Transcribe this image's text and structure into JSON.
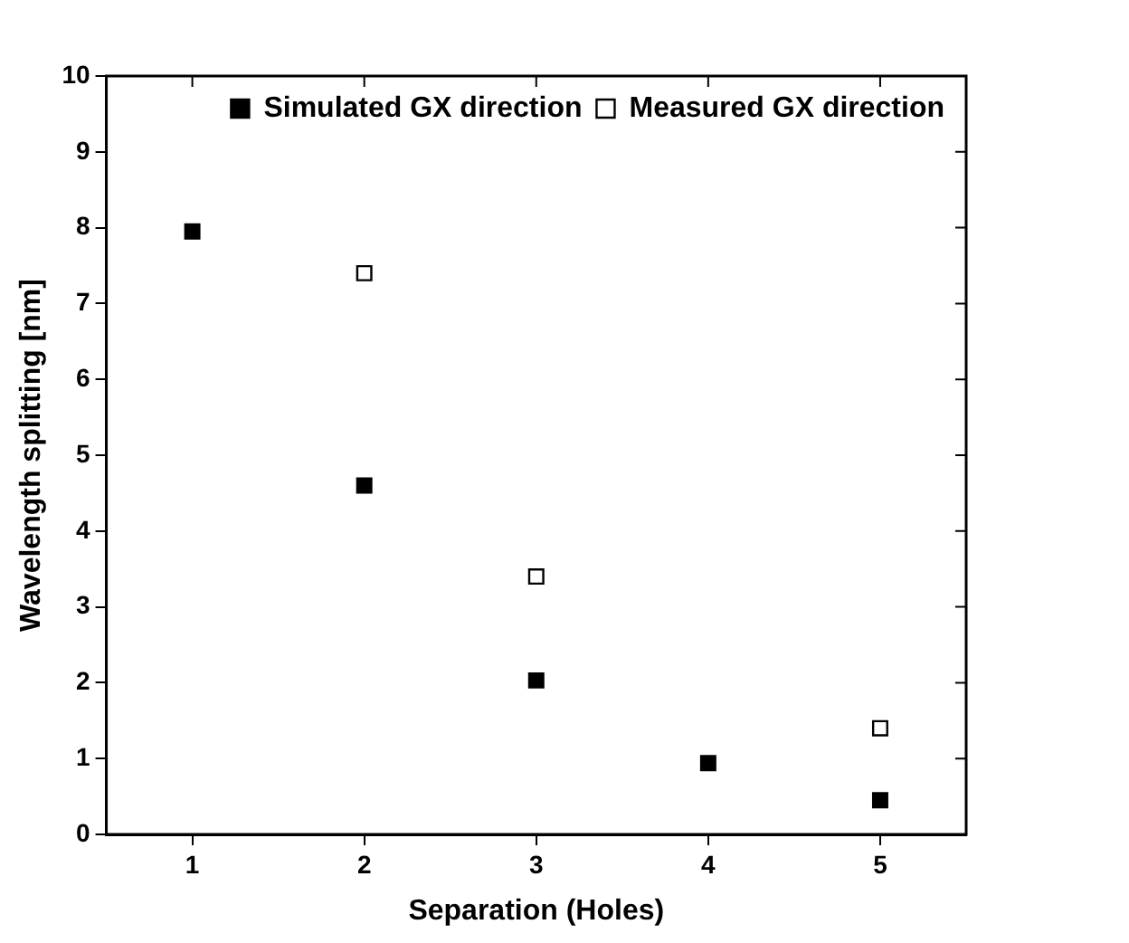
{
  "chart_data": {
    "type": "scatter",
    "xlabel": "Separation (Holes)",
    "ylabel": "Wavelength splitting [nm]",
    "xlim": [
      0.5,
      5.5
    ],
    "xticks": [
      1,
      2,
      3,
      4,
      5
    ],
    "ylim": [
      0,
      10
    ],
    "yticks": [
      0,
      1,
      2,
      3,
      4,
      5,
      6,
      7,
      8,
      9,
      10
    ],
    "grid": false,
    "legend": "top right",
    "marker": "square",
    "series": [
      {
        "name": "Simulated GX direction",
        "color": "#000000",
        "x": [
          1,
          2,
          3,
          4,
          5
        ],
        "values": [
          7.95,
          4.6,
          2.03,
          0.94,
          0.45
        ]
      },
      {
        "name": "Measured GX direction",
        "color": "#000000",
        "x": [
          2,
          3,
          5
        ],
        "values": [
          7.4,
          3.4,
          1.4
        ]
      }
    ]
  }
}
